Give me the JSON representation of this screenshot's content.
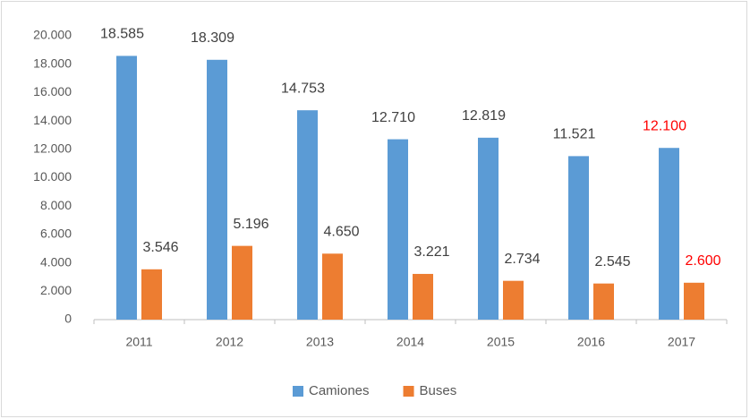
{
  "chart_data": {
    "type": "bar",
    "categories": [
      "2011",
      "2012",
      "2013",
      "2014",
      "2015",
      "2016",
      "2017"
    ],
    "series": [
      {
        "name": "Camiones",
        "color": "#5b9bd5",
        "values": [
          18585,
          18309,
          14753,
          12710,
          12819,
          11521,
          12100
        ],
        "value_labels": [
          "18.585",
          "18.309",
          "14.753",
          "12.710",
          "12.819",
          "11.521",
          "12.100"
        ],
        "value_label_colors": [
          "#404040",
          "#404040",
          "#404040",
          "#404040",
          "#404040",
          "#404040",
          "#ff0000"
        ]
      },
      {
        "name": "Buses",
        "color": "#ed7d31",
        "values": [
          3546,
          5196,
          4650,
          3221,
          2734,
          2545,
          2600
        ],
        "value_labels": [
          "3.546",
          "5.196",
          "4.650",
          "3.221",
          "2.734",
          "2.545",
          "2.600"
        ],
        "value_label_colors": [
          "#404040",
          "#404040",
          "#404040",
          "#404040",
          "#404040",
          "#404040",
          "#ff0000"
        ]
      }
    ],
    "ylim": [
      0,
      20000
    ],
    "yticks": [
      0,
      {
        "value": 2000,
        "label": "2.000"
      },
      {
        "value": 4000,
        "label": "4.000"
      },
      {
        "value": 6000,
        "label": "6.000"
      },
      {
        "value": 8000,
        "label": "8.000"
      },
      {
        "value": 10000,
        "label": "10.000"
      },
      {
        "value": 12000,
        "label": "12.000"
      },
      {
        "value": 14000,
        "label": "14.000"
      },
      {
        "value": 16000,
        "label": "16.000"
      },
      {
        "value": 18000,
        "label": "18.000"
      },
      {
        "value": 20000,
        "label": "20.000"
      }
    ],
    "grid": false,
    "legend": "bottom"
  }
}
